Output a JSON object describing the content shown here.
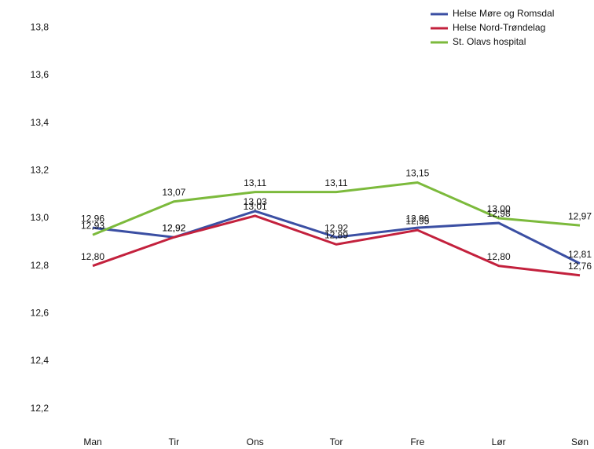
{
  "chart_data": {
    "type": "line",
    "categories": [
      "Man",
      "Tir",
      "Ons",
      "Tor",
      "Fre",
      "Lør",
      "Søn"
    ],
    "series": [
      {
        "name": "Helse Møre og Romsdal",
        "color": "#3b4fa3",
        "values": [
          12.96,
          12.92,
          13.03,
          12.92,
          12.96,
          12.98,
          12.81
        ],
        "value_labels": [
          "12,96",
          "12,92",
          "13,03",
          "12,92",
          "12,96",
          "12,98",
          "12,81"
        ]
      },
      {
        "name": "Helse Nord-Trøndelag",
        "color": "#c3213d",
        "values": [
          12.8,
          12.92,
          13.01,
          12.89,
          12.95,
          12.8,
          12.76
        ],
        "value_labels": [
          "12,80",
          "12,92",
          "13,01",
          "12,89",
          "12,95",
          "12,80",
          "12,76"
        ]
      },
      {
        "name": "St. Olavs hospital",
        "color": "#7cba3c",
        "values": [
          12.93,
          13.07,
          13.11,
          13.11,
          13.15,
          13.0,
          12.97
        ],
        "value_labels": [
          "12,93",
          "13,07",
          "13,11",
          "13,11",
          "13,15",
          "13,00",
          "12,97"
        ]
      }
    ],
    "ylim": [
      12.1,
      13.9
    ],
    "yticks": [
      {
        "value": 12.2,
        "label": "12,2"
      },
      {
        "value": 12.4,
        "label": "12,4"
      },
      {
        "value": 12.6,
        "label": "12,6"
      },
      {
        "value": 12.8,
        "label": "12,8"
      },
      {
        "value": 13.0,
        "label": "13,0"
      },
      {
        "value": 13.2,
        "label": "13,2"
      },
      {
        "value": 13.4,
        "label": "13,4"
      },
      {
        "value": 13.6,
        "label": "13,6"
      },
      {
        "value": 13.8,
        "label": "13,8"
      }
    ],
    "legend": "top-right"
  }
}
